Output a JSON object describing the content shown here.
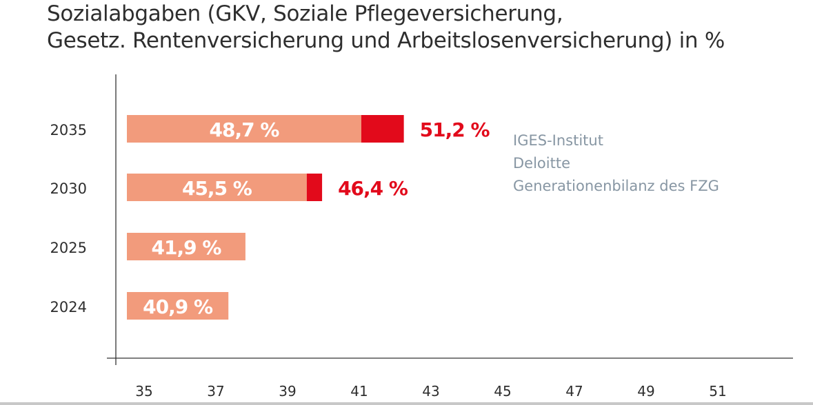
{
  "chart_data": {
    "type": "bar",
    "orientation": "horizontal",
    "title_lines": [
      "Sozialabgaben (GKV, Soziale Pflegeversicherung,",
      "Gesetz. Rentenversicherung und Arbeitslosenversicherung) in %"
    ],
    "categories": [
      "2035",
      "2030",
      "2025",
      "2024"
    ],
    "series": [
      {
        "name": "base",
        "values": [
          48.7,
          45.5,
          41.9,
          40.9
        ],
        "labels": [
          "48,7 %",
          "45,5 %",
          "41,9 %",
          "40,9 %"
        ],
        "color": "#f29b7c"
      },
      {
        "name": "upper",
        "values": [
          51.2,
          46.4,
          null,
          null
        ],
        "labels": [
          "51,2 %",
          "46,4 %",
          null,
          null
        ],
        "color": "#e20a1b"
      }
    ],
    "xticks": [
      "35",
      "37",
      "39",
      "41",
      "43",
      "45",
      "47",
      "49",
      "51"
    ],
    "xlim": [
      34.5,
      53
    ],
    "grid": false,
    "legend_placement": "right",
    "sources": [
      "IGES-Institut",
      "Deloitte",
      "Generationenbilanz des FZG"
    ]
  }
}
